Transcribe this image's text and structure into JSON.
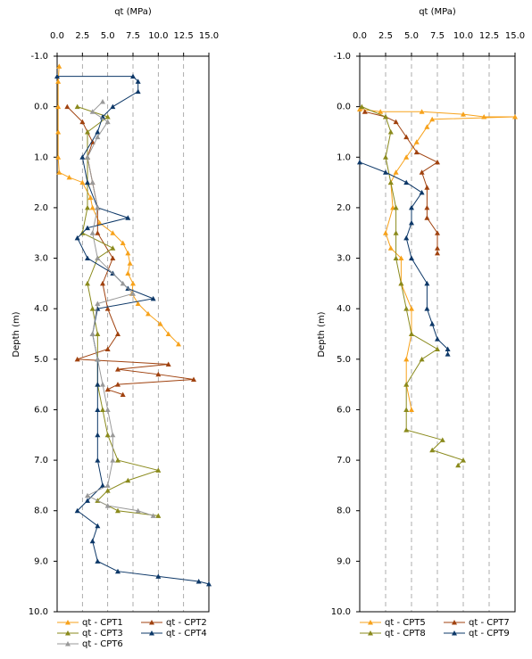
{
  "chart_data": [
    {
      "type": "line",
      "xlabel": "qt (MPa)",
      "ylabel": "Depth (m)",
      "xlim": [
        0,
        15
      ],
      "ylim": [
        -1,
        10
      ],
      "y_reversed": true,
      "grid": true,
      "xticks": [
        {
          "value": 0,
          "label": "0.0"
        },
        2.5,
        {
          "value": 5,
          "label": "5.0"
        },
        7.5,
        {
          "value": 10,
          "label": "10.0"
        },
        12.5,
        {
          "value": 15,
          "label": "15.0"
        }
      ],
      "yticks": [
        {
          "value": -1,
          "label": "-1.0"
        },
        {
          "value": 0,
          "label": "0.0"
        },
        {
          "value": 1,
          "label": "1.0"
        },
        {
          "value": 2,
          "label": "2.0"
        },
        {
          "value": 3,
          "label": "3.0"
        },
        {
          "value": 4,
          "label": "4.0"
        },
        {
          "value": 5,
          "label": "5.0"
        },
        {
          "value": 6,
          "label": "6.0"
        },
        {
          "value": 7,
          "label": "7.0"
        },
        {
          "value": 8,
          "label": "8.0"
        },
        {
          "value": 9,
          "label": "9.0"
        },
        {
          "value": 10,
          "label": "10.0"
        }
      ],
      "series": [
        {
          "name": "qt - CPT1",
          "color": "#f7a21b",
          "x": [
            0.2,
            0.1,
            0.1,
            0.1,
            0.1,
            0.2,
            1.2,
            2.5,
            3.3,
            3.5,
            4.2,
            5.5,
            6.5,
            7.0,
            7.2,
            7.0,
            7.5,
            7.4,
            8.0,
            9.0,
            10.2,
            11.0,
            12.0
          ],
          "values": [
            -0.8,
            -0.5,
            0,
            0.5,
            1.0,
            1.3,
            1.4,
            1.5,
            1.8,
            2.0,
            2.3,
            2.5,
            2.7,
            2.9,
            3.1,
            3.3,
            3.5,
            3.7,
            3.9,
            4.1,
            4.3,
            4.5,
            4.7
          ]
        },
        {
          "name": "qt - CPT2",
          "color": "#a0420f",
          "x": [
            1.0,
            2.5,
            3.5,
            3.0,
            3.5,
            4.0,
            4.0,
            5.5,
            4.5,
            5.0,
            6.0,
            5.0,
            2.0,
            11.0,
            6.0,
            10.0,
            13.5,
            6.0,
            5.0,
            6.5
          ],
          "values": [
            0.0,
            0.3,
            0.7,
            1.0,
            1.5,
            2.0,
            2.5,
            3.0,
            3.5,
            4.0,
            4.5,
            4.8,
            5.0,
            5.1,
            5.2,
            5.3,
            5.4,
            5.5,
            5.6,
            5.7
          ]
        },
        {
          "name": "qt - CPT3",
          "color": "#8a8a1c",
          "x": [
            2.0,
            5.0,
            3.0,
            3.0,
            3.0,
            3.0,
            2.5,
            5.5,
            4.0,
            3.0,
            3.5,
            4.0,
            4.0,
            4.0,
            4.5,
            5.0,
            6.0,
            10.0,
            7.0,
            5.0,
            4.0,
            6.0,
            10.0
          ],
          "values": [
            0.0,
            0.2,
            0.5,
            1.0,
            1.5,
            2.0,
            2.5,
            2.8,
            3.0,
            3.5,
            4.0,
            4.5,
            5.0,
            5.5,
            6.0,
            6.5,
            7.0,
            7.2,
            7.4,
            7.6,
            7.8,
            8.0,
            8.1
          ]
        },
        {
          "name": "qt - CPT4",
          "color": "#0d3868",
          "x": [
            0.0,
            7.5,
            8.0,
            8.0,
            5.5,
            4.5,
            4.0,
            2.5,
            3.0,
            4.0,
            7.0,
            3.0,
            2.0,
            3.0,
            5.5,
            7.0,
            9.5,
            4.0,
            3.5,
            4.0,
            4.0,
            4.0,
            4.0,
            4.0,
            4.5,
            3.0,
            2.0,
            4.0,
            3.5,
            4.0,
            6.0,
            10.0,
            14.0,
            15.0
          ],
          "values": [
            -0.6,
            -0.6,
            -0.5,
            -0.3,
            0.0,
            0.2,
            0.5,
            1.0,
            1.5,
            2.0,
            2.2,
            2.4,
            2.6,
            3.0,
            3.3,
            3.6,
            3.8,
            4.0,
            4.5,
            5.0,
            5.5,
            6.0,
            6.5,
            7.0,
            7.5,
            7.8,
            8.0,
            8.3,
            8.6,
            9.0,
            9.2,
            9.3,
            9.4,
            9.45
          ]
        },
        {
          "name": "qt - CPT6",
          "color": "#999999",
          "x": [
            4.5,
            3.5,
            5.0,
            4.0,
            3.0,
            3.5,
            4.0,
            3.5,
            4.0,
            6.5,
            7.5,
            4.0,
            3.5,
            4.0,
            4.5,
            5.0,
            5.5,
            5.5,
            5.0,
            3.0,
            5.0,
            8.0,
            9.5
          ],
          "values": [
            -0.1,
            0.1,
            0.3,
            0.6,
            1.0,
            1.5,
            2.0,
            2.5,
            3.0,
            3.5,
            3.7,
            3.9,
            4.5,
            5.0,
            5.5,
            6.0,
            6.5,
            7.0,
            7.5,
            7.7,
            7.9,
            8.0,
            8.1
          ]
        }
      ]
    },
    {
      "type": "line",
      "xlabel": "qt (MPa)",
      "ylabel": "Depth (m)",
      "xlim": [
        0,
        15
      ],
      "ylim": [
        -1,
        10
      ],
      "y_reversed": true,
      "grid": true,
      "xticks": [
        {
          "value": 0,
          "label": "0.0"
        },
        2.5,
        {
          "value": 5,
          "label": "5.0"
        },
        7.5,
        {
          "value": 10,
          "label": "10.0"
        },
        12.5,
        {
          "value": 15,
          "label": "15.0"
        }
      ],
      "yticks": [
        {
          "value": -1,
          "label": "-1.0"
        },
        {
          "value": 0,
          "label": "0.0"
        },
        {
          "value": 1,
          "label": "1.0"
        },
        {
          "value": 2,
          "label": "2.0"
        },
        {
          "value": 3,
          "label": "3.0"
        },
        {
          "value": 4,
          "label": "4.0"
        },
        {
          "value": 5,
          "label": "5.0"
        },
        {
          "value": 6,
          "label": "6.0"
        },
        {
          "value": 7,
          "label": "7.0"
        },
        {
          "value": 8,
          "label": "8.0"
        },
        {
          "value": 9,
          "label": "9.0"
        },
        {
          "value": 10,
          "label": "10.0"
        }
      ],
      "series": [
        {
          "name": "qt - CPT5",
          "color": "#f7a21b",
          "x": [
            0,
            2,
            6,
            10,
            12,
            15,
            7,
            6.5,
            5.5,
            4.5,
            3.5,
            3,
            3.2,
            2.5,
            3,
            4,
            4,
            5,
            5,
            4.5,
            4.5,
            5
          ],
          "values": [
            0.05,
            0.1,
            0.1,
            0.15,
            0.2,
            0.2,
            0.25,
            0.4,
            0.7,
            1.0,
            1.3,
            1.5,
            2.0,
            2.5,
            2.8,
            3.0,
            3.5,
            4.0,
            4.5,
            5.0,
            5.5,
            6.0
          ]
        },
        {
          "name": "qt - CPT7",
          "color": "#a0420f",
          "x": [
            0.5,
            2.5,
            3.5,
            4.5,
            5.5,
            7.5,
            6,
            6.5,
            6.5,
            6.5,
            7.5,
            7.5,
            7.5
          ],
          "values": [
            0.1,
            0.2,
            0.3,
            0.6,
            0.9,
            1.1,
            1.3,
            1.6,
            2.0,
            2.2,
            2.5,
            2.8,
            2.9
          ]
        },
        {
          "name": "qt - CPT8",
          "color": "#8a8a1c",
          "x": [
            0.2,
            2.5,
            3,
            2.5,
            3,
            3.5,
            3.5,
            3.5,
            4,
            4.5,
            5,
            7.5,
            6,
            4.5,
            4.5,
            4.5,
            8,
            7,
            10,
            9.5
          ],
          "values": [
            0.0,
            0.2,
            0.5,
            1.0,
            1.5,
            2.0,
            2.5,
            3.0,
            3.5,
            4.0,
            4.5,
            4.8,
            5.0,
            5.5,
            6.0,
            6.4,
            6.6,
            6.8,
            7.0,
            7.1
          ]
        },
        {
          "name": "qt - CPT9",
          "color": "#0d3868",
          "x": [
            0,
            2.5,
            4.5,
            6,
            5,
            5,
            4.5,
            5,
            6.5,
            6.5,
            7,
            7.5,
            8.5,
            8.5
          ],
          "values": [
            1.1,
            1.3,
            1.5,
            1.7,
            2.0,
            2.3,
            2.6,
            3.0,
            3.5,
            4.0,
            4.3,
            4.6,
            4.8,
            4.9
          ]
        }
      ]
    }
  ]
}
